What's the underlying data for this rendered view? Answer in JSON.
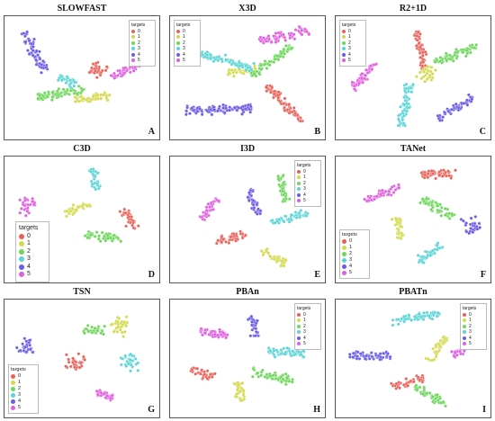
{
  "colors": {
    "0": "#e8625a",
    "1": "#d4d94e",
    "2": "#6ed65a",
    "3": "#5bd4d6",
    "4": "#6a5ce6",
    "5": "#df5fdf"
  },
  "legend": {
    "title": "targets",
    "labels": [
      "0",
      "1",
      "2",
      "3",
      "4",
      "5"
    ]
  },
  "chart_data": [
    {
      "type": "scatter",
      "id": "A",
      "title": "SLOWFAST",
      "letter": "A",
      "legend": "small-top-right",
      "clusters": [
        {
          "target": "0",
          "points": [
            [
              0.3,
              0.12
            ],
            [
              0.12,
              0.2
            ]
          ]
        },
        {
          "target": "1",
          "points": [
            [
              -0.1,
              -0.4
            ],
            [
              0.4,
              -0.3
            ]
          ]
        },
        {
          "target": "2",
          "points": [
            [
              -0.7,
              -0.35
            ],
            [
              0.0,
              -0.2
            ]
          ]
        },
        {
          "target": "3",
          "points": [
            [
              -0.4,
              0.05
            ],
            [
              -0.1,
              -0.1
            ]
          ]
        },
        {
          "target": "4",
          "points": [
            [
              -0.85,
              0.85
            ],
            [
              -0.55,
              0.15
            ]
          ]
        },
        {
          "target": "5",
          "points": [
            [
              0.4,
              0.0
            ],
            [
              0.85,
              0.3
            ]
          ]
        }
      ]
    },
    {
      "type": "scatter",
      "id": "B",
      "title": "X3D",
      "letter": "B",
      "legend": "small-top-left",
      "clusters": [
        {
          "target": "0",
          "points": [
            [
              0.25,
              -0.1
            ],
            [
              0.75,
              -0.8
            ]
          ]
        },
        {
          "target": "1",
          "points": [
            [
              -0.3,
              0.1
            ],
            [
              0.1,
              0.2
            ]
          ]
        },
        {
          "target": "2",
          "points": [
            [
              0.05,
              0.05
            ],
            [
              0.6,
              0.6
            ]
          ]
        },
        {
          "target": "3",
          "points": [
            [
              -0.8,
              0.5
            ],
            [
              0.05,
              0.2
            ]
          ]
        },
        {
          "target": "4",
          "points": [
            [
              -0.9,
              -0.6
            ],
            [
              0.05,
              -0.55
            ]
          ]
        },
        {
          "target": "5",
          "points": [
            [
              0.15,
              0.7
            ],
            [
              0.85,
              0.9
            ]
          ]
        }
      ]
    },
    {
      "type": "scatter",
      "id": "C",
      "title": "R2+1D",
      "letter": "C",
      "legend": "small-top-left",
      "clusters": [
        {
          "target": "0",
          "points": [
            [
              0.05,
              0.9
            ],
            [
              0.15,
              0.2
            ]
          ]
        },
        {
          "target": "1",
          "points": [
            [
              0.15,
              0.2
            ],
            [
              0.25,
              0.0
            ]
          ]
        },
        {
          "target": "2",
          "points": [
            [
              0.3,
              0.3
            ],
            [
              0.9,
              0.6
            ]
          ]
        },
        {
          "target": "3",
          "points": [
            [
              -0.2,
              -0.9
            ],
            [
              -0.05,
              -0.1
            ]
          ]
        },
        {
          "target": "4",
          "points": [
            [
              0.35,
              -0.75
            ],
            [
              0.85,
              -0.35
            ]
          ]
        },
        {
          "target": "5",
          "points": [
            [
              -0.9,
              -0.2
            ],
            [
              -0.55,
              0.3
            ]
          ]
        }
      ]
    },
    {
      "type": "scatter",
      "id": "D",
      "title": "C3D",
      "letter": "D",
      "legend": "large-left",
      "clusters": [
        {
          "target": "0",
          "points": [
            [
              0.6,
              0.2
            ],
            [
              0.75,
              -0.15
            ]
          ]
        },
        {
          "target": "1",
          "points": [
            [
              -0.25,
              0.15
            ],
            [
              0.1,
              0.3
            ]
          ]
        },
        {
          "target": "2",
          "points": [
            [
              0.05,
              -0.25
            ],
            [
              0.55,
              -0.35
            ]
          ]
        },
        {
          "target": "3",
          "points": [
            [
              0.15,
              0.95
            ],
            [
              0.2,
              0.55
            ]
          ]
        },
        {
          "target": "4",
          "points": [
            [
              -0.75,
              -0.8
            ],
            [
              -0.6,
              -0.7
            ]
          ]
        },
        {
          "target": "5",
          "points": [
            [
              -0.9,
              0.2
            ],
            [
              -0.7,
              0.35
            ]
          ]
        }
      ]
    },
    {
      "type": "scatter",
      "id": "E",
      "title": "I3D",
      "letter": "E",
      "legend": "small-top-right",
      "clusters": [
        {
          "target": "0",
          "points": [
            [
              -0.45,
              -0.4
            ],
            [
              -0.05,
              -0.25
            ]
          ]
        },
        {
          "target": "1",
          "points": [
            [
              0.2,
              -0.55
            ],
            [
              0.55,
              -0.8
            ]
          ]
        },
        {
          "target": "2",
          "points": [
            [
              0.45,
              0.8
            ],
            [
              0.55,
              0.35
            ]
          ]
        },
        {
          "target": "3",
          "points": [
            [
              0.35,
              -0.05
            ],
            [
              0.85,
              0.15
            ]
          ]
        },
        {
          "target": "4",
          "points": [
            [
              0.0,
              0.55
            ],
            [
              0.15,
              0.1
            ]
          ]
        },
        {
          "target": "5",
          "points": [
            [
              -0.7,
              0.0
            ],
            [
              -0.45,
              0.4
            ]
          ]
        }
      ]
    },
    {
      "type": "scatter",
      "id": "F",
      "title": "TANet",
      "letter": "F",
      "legend": "medium-bottom-left",
      "clusters": [
        {
          "target": "0",
          "points": [
            [
              0.1,
              0.85
            ],
            [
              0.6,
              0.85
            ]
          ]
        },
        {
          "target": "1",
          "points": [
            [
              -0.25,
              0.05
            ],
            [
              -0.2,
              -0.35
            ]
          ]
        },
        {
          "target": "2",
          "points": [
            [
              0.1,
              0.4
            ],
            [
              0.55,
              0.05
            ]
          ]
        },
        {
          "target": "3",
          "points": [
            [
              0.05,
              -0.75
            ],
            [
              0.4,
              -0.45
            ]
          ]
        },
        {
          "target": "4",
          "points": [
            [
              0.8,
              0.05
            ],
            [
              0.85,
              -0.25
            ]
          ]
        },
        {
          "target": "5",
          "points": [
            [
              -0.7,
              0.35
            ],
            [
              -0.2,
              0.6
            ]
          ]
        }
      ]
    },
    {
      "type": "scatter",
      "id": "G",
      "title": "TSN",
      "letter": "G",
      "legend": "medium-bottom-left",
      "clusters": [
        {
          "target": "0",
          "points": [
            [
              -0.25,
              -0.05
            ],
            [
              0.0,
              -0.05
            ]
          ]
        },
        {
          "target": "1",
          "points": [
            [
              0.45,
              0.7
            ],
            [
              0.6,
              0.6
            ]
          ]
        },
        {
          "target": "2",
          "points": [
            [
              0.0,
              0.6
            ],
            [
              0.3,
              0.55
            ]
          ]
        },
        {
          "target": "3",
          "points": [
            [
              0.6,
              -0.1
            ],
            [
              0.75,
              0.0
            ]
          ]
        },
        {
          "target": "4",
          "points": [
            [
              -0.9,
              0.25
            ],
            [
              -0.75,
              0.25
            ]
          ]
        },
        {
          "target": "5",
          "points": [
            [
              0.2,
              -0.65
            ],
            [
              0.45,
              -0.75
            ]
          ]
        }
      ]
    },
    {
      "type": "scatter",
      "id": "H",
      "title": "PBAn",
      "letter": "H",
      "legend": "small-top-right",
      "clusters": [
        {
          "target": "0",
          "points": [
            [
              -0.85,
              -0.2
            ],
            [
              -0.5,
              -0.35
            ]
          ]
        },
        {
          "target": "1",
          "points": [
            [
              -0.15,
              -0.45
            ],
            [
              -0.1,
              -0.85
            ]
          ]
        },
        {
          "target": "2",
          "points": [
            [
              0.05,
              -0.25
            ],
            [
              0.65,
              -0.4
            ]
          ]
        },
        {
          "target": "3",
          "points": [
            [
              0.3,
              0.15
            ],
            [
              0.8,
              0.1
            ]
          ]
        },
        {
          "target": "4",
          "points": [
            [
              0.05,
              0.85
            ],
            [
              0.1,
              0.45
            ]
          ]
        },
        {
          "target": "5",
          "points": [
            [
              -0.7,
              0.55
            ],
            [
              -0.3,
              0.5
            ]
          ]
        }
      ]
    },
    {
      "type": "scatter",
      "id": "I",
      "title": "PBATn",
      "letter": "I",
      "legend": "small-top-right",
      "clusters": [
        {
          "target": "0",
          "points": [
            [
              -0.3,
              -0.55
            ],
            [
              0.15,
              -0.35
            ]
          ]
        },
        {
          "target": "1",
          "points": [
            [
              0.25,
              -0.05
            ],
            [
              0.45,
              0.45
            ]
          ]
        },
        {
          "target": "2",
          "points": [
            [
              0.0,
              -0.55
            ],
            [
              0.45,
              -0.9
            ]
          ]
        },
        {
          "target": "3",
          "points": [
            [
              -0.3,
              0.75
            ],
            [
              0.35,
              0.9
            ]
          ]
        },
        {
          "target": "4",
          "points": [
            [
              -0.95,
              0.1
            ],
            [
              -0.35,
              0.05
            ]
          ]
        },
        {
          "target": "5",
          "points": [
            [
              0.55,
              0.1
            ],
            [
              0.85,
              0.3
            ]
          ]
        }
      ]
    }
  ]
}
